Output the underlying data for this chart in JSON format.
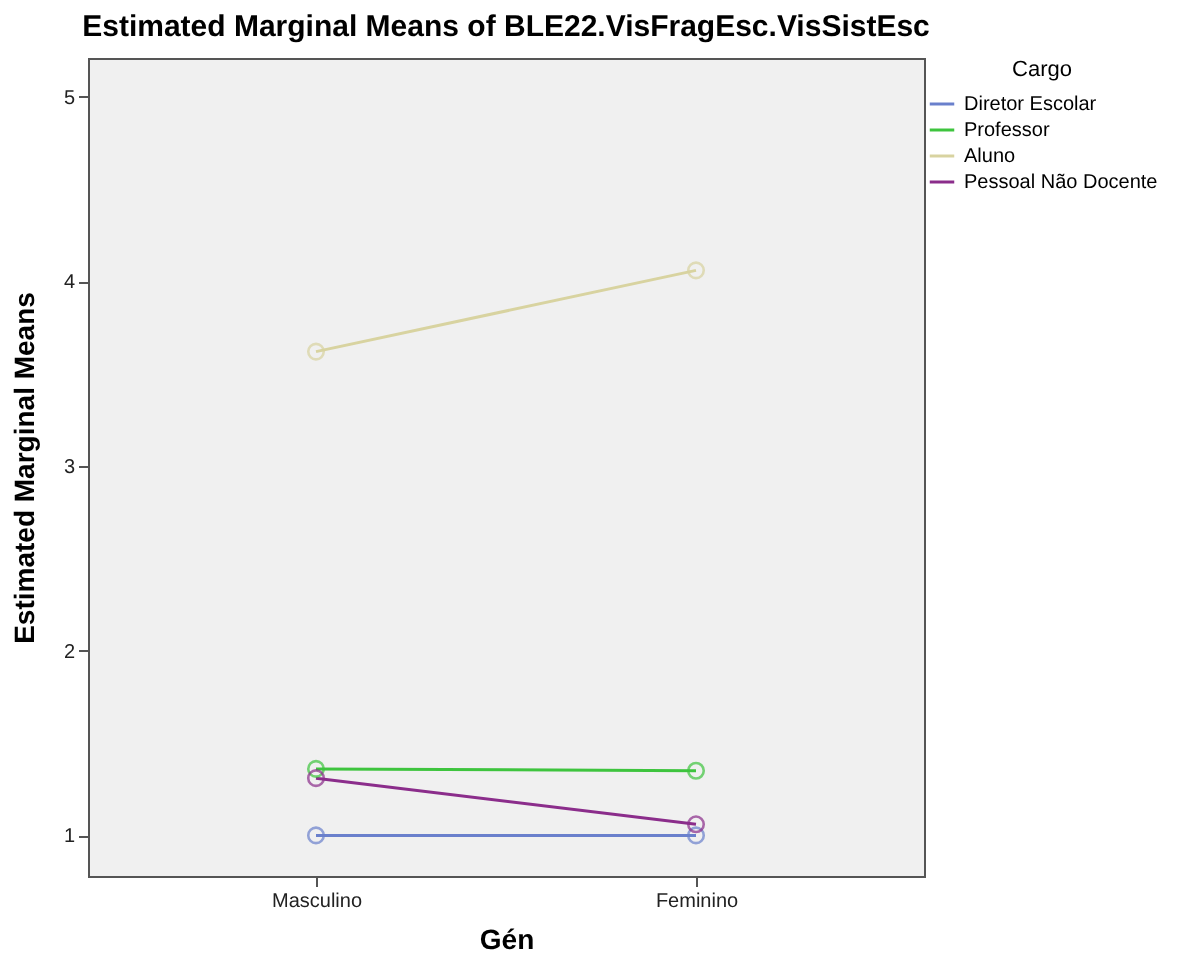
{
  "chart_data": {
    "type": "line",
    "title": "Estimated Marginal Means of BLE22.VisFragEsc.VisSistEsc",
    "xlabel": "Gén",
    "ylabel": "Estimated Marginal Means",
    "legend_title": "Cargo",
    "categories": [
      "Masculino",
      "Feminino"
    ],
    "series": [
      {
        "name": "Diretor Escolar",
        "color": "#6a80cc",
        "values": [
          1.0,
          1.0
        ]
      },
      {
        "name": "Professor",
        "color": "#3ec43e",
        "values": [
          1.36,
          1.35
        ]
      },
      {
        "name": "Aluno",
        "color": "#d8d3a0",
        "values": [
          3.62,
          4.06
        ]
      },
      {
        "name": "Pessoal Não Docente",
        "color": "#8b2d8b",
        "values": [
          1.31,
          1.06
        ]
      }
    ],
    "ylim": [
      0.78,
      5.21
    ],
    "yticks": [
      1,
      2,
      3,
      4,
      5
    ],
    "grid": false,
    "legend": "top right",
    "marker": "circle",
    "line_style": "solid"
  }
}
